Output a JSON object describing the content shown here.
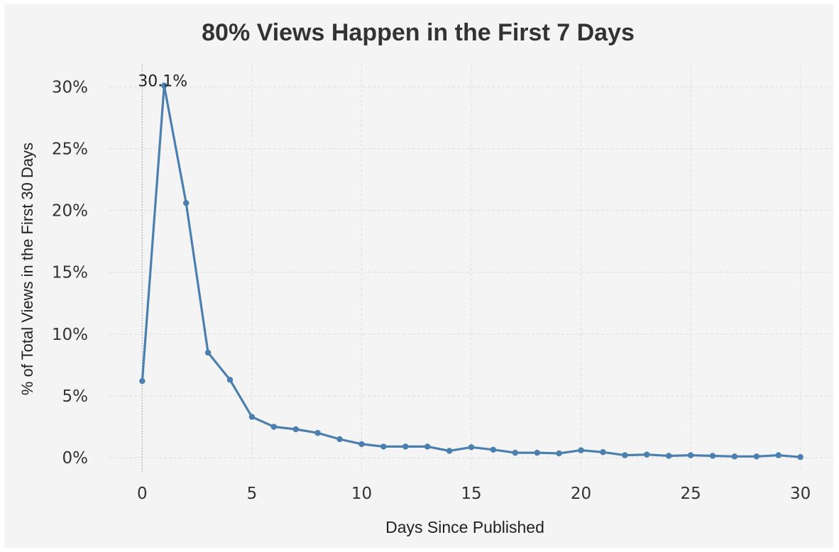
{
  "chart_data": {
    "type": "line",
    "title": "80% Views Happen in the First 7 Days",
    "xlabel": "Days Since Published",
    "ylabel": "% of Total Views in the First 30 Days",
    "x": [
      0,
      1,
      2,
      3,
      4,
      5,
      6,
      7,
      8,
      9,
      10,
      11,
      12,
      13,
      14,
      15,
      16,
      17,
      18,
      19,
      20,
      21,
      22,
      23,
      24,
      25,
      26,
      27,
      28,
      29,
      30
    ],
    "series": [
      {
        "values": [
          6.2,
          30.1,
          20.6,
          8.5,
          6.3,
          3.3,
          2.5,
          2.3,
          2.0,
          1.5,
          1.1,
          0.9,
          0.9,
          0.9,
          0.55,
          0.85,
          0.65,
          0.4,
          0.4,
          0.35,
          0.6,
          0.45,
          0.2,
          0.25,
          0.15,
          0.2,
          0.15,
          0.1,
          0.1,
          0.2,
          0.05
        ]
      }
    ],
    "xticks": [
      0,
      5,
      10,
      15,
      20,
      25,
      30
    ],
    "yticks": [
      0,
      5,
      10,
      15,
      20,
      25,
      30
    ],
    "ytick_labels": [
      "0%",
      "5%",
      "10%",
      "15%",
      "20%",
      "25%",
      "30%"
    ],
    "xlim": [
      -1.5,
      31.5
    ],
    "ylim": [
      -1.2,
      31.8
    ],
    "grid": true,
    "annotations": [
      {
        "x": 1,
        "y": 30.1,
        "text": "30.1%"
      }
    ],
    "colors": {
      "line": "#4a7fb0",
      "grid": "#dddddd",
      "background": "#f4f4f4",
      "reference_line": "#b0b0b0"
    }
  }
}
